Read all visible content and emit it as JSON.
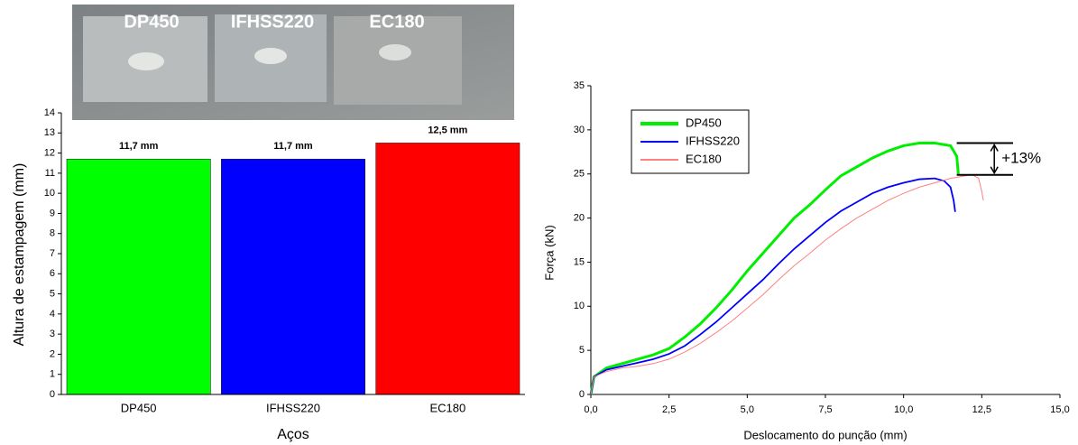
{
  "photo": {
    "labels": [
      "DP450",
      "IFHSS220",
      "EC180"
    ]
  },
  "chart_data": [
    {
      "type": "bar",
      "x_label": "Aços",
      "y_label": "Altura de estampagem (mm)",
      "categories": [
        "DP450",
        "IFHSS220",
        "EC180"
      ],
      "values": [
        11.7,
        11.7,
        12.5
      ],
      "value_labels": [
        "11,7 mm",
        "11,7 mm",
        "12,5 mm"
      ],
      "colors": [
        "#00ff00",
        "#0000ff",
        "#ff0000"
      ],
      "ylim": [
        0,
        14
      ],
      "yticks": [
        0,
        1,
        2,
        3,
        4,
        5,
        6,
        7,
        8,
        9,
        10,
        11,
        12,
        13,
        14
      ]
    },
    {
      "type": "line",
      "x_label": "Deslocamento do punção (mm)",
      "y_label": "Força (kN)",
      "annotation": "+13%",
      "xlim": [
        0,
        15
      ],
      "ylim": [
        0,
        35
      ],
      "xticks": [
        {
          "value": 0,
          "label": "0,0"
        },
        {
          "value": 2.5,
          "label": "2,5"
        },
        {
          "value": 5,
          "label": "5,0"
        },
        {
          "value": 7.5,
          "label": "7,5"
        },
        {
          "value": 10,
          "label": "10,0"
        },
        {
          "value": 12.5,
          "label": "12,5"
        },
        {
          "value": 15,
          "label": "15,0"
        }
      ],
      "yticks": [
        0,
        5,
        10,
        15,
        20,
        25,
        30,
        35
      ],
      "series": [
        {
          "name": "DP450",
          "color": "#00ee00",
          "x": [
            0,
            0.1,
            0.5,
            1,
            1.5,
            2,
            2.5,
            3,
            3.5,
            4,
            4.5,
            5,
            5.5,
            6,
            6.5,
            7,
            7.5,
            8,
            8.5,
            9,
            9.5,
            10,
            10.5,
            11,
            11.5,
            11.7,
            11.75
          ],
          "values": [
            0,
            2,
            3,
            3.5,
            4,
            4.5,
            5.2,
            6.5,
            8,
            9.8,
            11.8,
            14,
            16,
            18,
            20,
            21.5,
            23.2,
            24.8,
            25.8,
            26.8,
            27.6,
            28.2,
            28.5,
            28.5,
            28.2,
            27,
            25
          ]
        },
        {
          "name": "IFHSS220",
          "color": "#0000ff",
          "x": [
            0,
            0.1,
            0.5,
            1,
            1.5,
            2,
            2.5,
            3,
            3.5,
            4,
            4.5,
            5,
            5.5,
            6,
            6.5,
            7,
            7.5,
            8,
            8.5,
            9,
            9.5,
            10,
            10.5,
            11,
            11.3,
            11.5,
            11.6,
            11.65
          ],
          "values": [
            0,
            2,
            2.8,
            3.2,
            3.6,
            4,
            4.6,
            5.5,
            6.8,
            8.2,
            9.8,
            11.4,
            13,
            14.8,
            16.5,
            18,
            19.5,
            20.8,
            21.8,
            22.8,
            23.5,
            24,
            24.4,
            24.5,
            24.2,
            23.5,
            22,
            20.7
          ]
        },
        {
          "name": "EC180",
          "color": "#ff8080",
          "x": [
            0,
            0.1,
            0.5,
            1,
            1.5,
            2,
            2.5,
            3,
            3.5,
            4,
            4.5,
            5,
            5.5,
            6,
            6.5,
            7,
            7.5,
            8,
            8.5,
            9,
            9.5,
            10,
            10.5,
            11,
            11.5,
            12,
            12.2,
            12.4,
            12.5,
            12.55
          ],
          "values": [
            0,
            2,
            2.6,
            3,
            3.2,
            3.5,
            4,
            4.8,
            5.8,
            7,
            8.3,
            9.8,
            11.3,
            13,
            14.6,
            16,
            17.5,
            18.8,
            20,
            21,
            22,
            22.8,
            23.5,
            24,
            24.5,
            24.8,
            24.9,
            24.5,
            23,
            22
          ]
        }
      ]
    }
  ]
}
